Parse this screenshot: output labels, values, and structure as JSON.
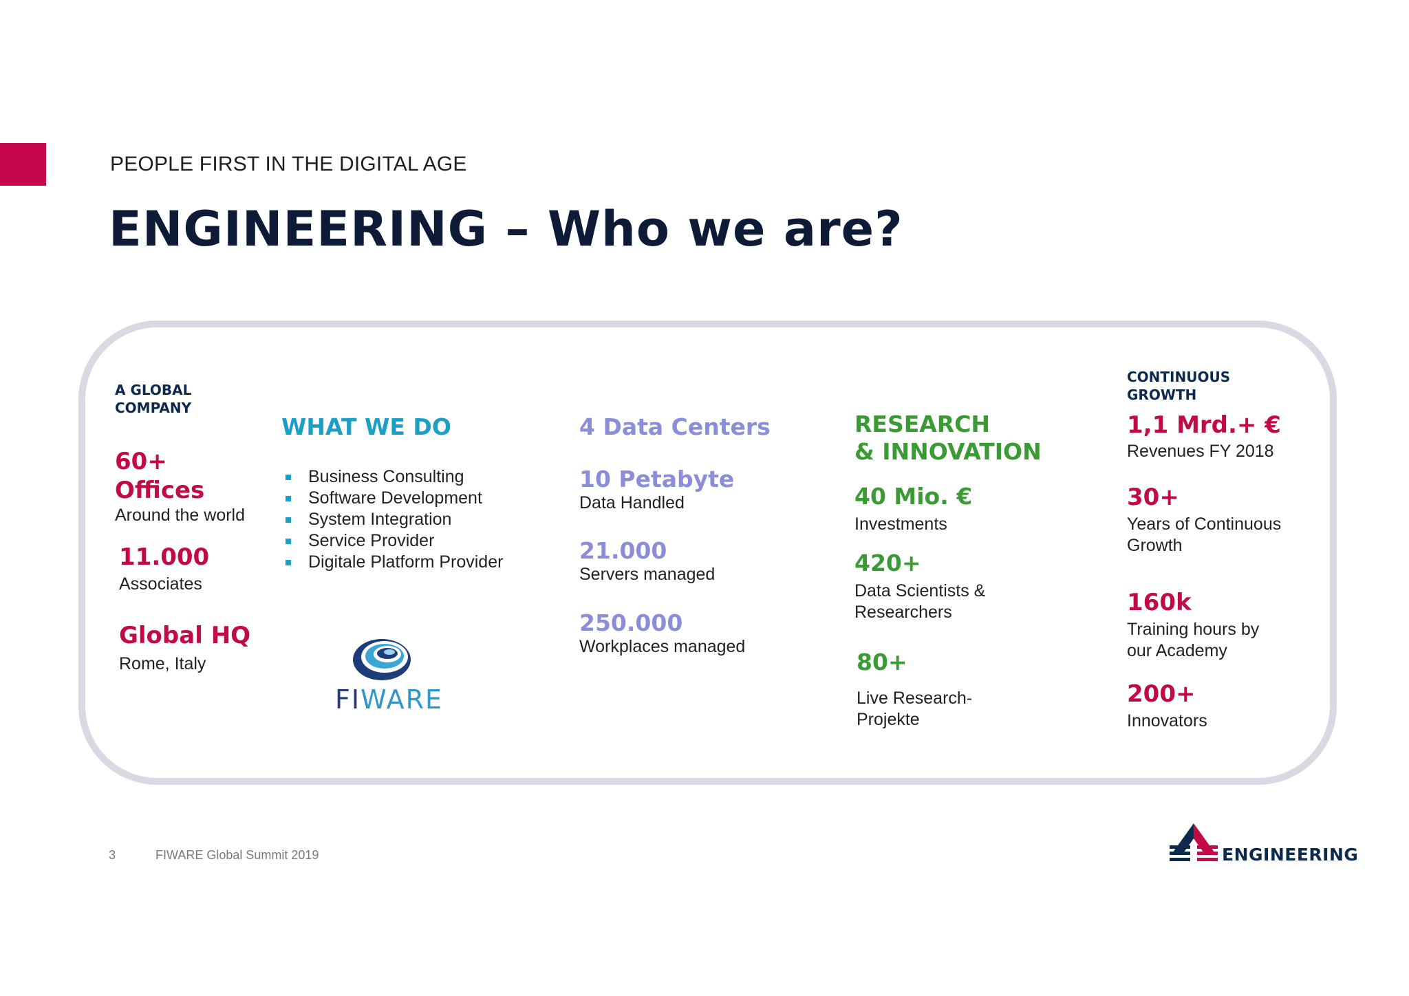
{
  "header": {
    "subtitle": "PEOPLE FIRST IN THE DIGITAL AGE",
    "title": "ENGINEERING – Who we are?"
  },
  "global_company": {
    "heading_line1": "A GLOBAL",
    "heading_line2": "COMPANY",
    "offices_num": "60+",
    "offices_word": "Offices",
    "offices_desc": "Around the world",
    "associates_num": "11.000",
    "associates_desc": "Associates",
    "hq_title": "Global HQ",
    "hq_desc": "Rome, Italy"
  },
  "what_we_do": {
    "heading": "WHAT WE DO",
    "items": [
      "Business Consulting",
      "Software Development",
      "System Integration",
      "Service Provider",
      "Digitale Platform Provider"
    ],
    "logo_text_fi": "FI",
    "logo_text_ware": "WARE"
  },
  "data_centers": {
    "heading": "4 Data Centers",
    "petabyte_num": "10 Petabyte",
    "petabyte_desc": "Data Handled",
    "servers_num": "21.000",
    "servers_desc": "Servers managed",
    "workplaces_num": "250.000",
    "workplaces_desc": "Workplaces managed"
  },
  "research": {
    "heading_line1": "RESEARCH",
    "heading_line2": "& INNOVATION",
    "investments_num": "40 Mio. €",
    "investments_desc": "Investments",
    "scientists_num": "420+",
    "scientists_desc_line1": "Data Scientists &",
    "scientists_desc_line2": "Researchers",
    "projects_num": "80+",
    "projects_desc_line1": "Live Research-",
    "projects_desc_line2": "Projekte"
  },
  "growth": {
    "heading_line1": "CONTINUOUS",
    "heading_line2": "GROWTH",
    "revenue_num": "1,1 Mrd.+ €",
    "revenue_desc": "Revenues FY 2018",
    "years_num": "30+",
    "years_desc_line1": "Years of Continuous",
    "years_desc_line2": "Growth",
    "training_num": "160k",
    "training_desc_line1": "Training hours by",
    "training_desc_line2": "our Academy",
    "innovators_num": "200+",
    "innovators_desc": "Innovators"
  },
  "footer": {
    "page_number": "3",
    "event": "FIWARE Global Summit 2019",
    "brand": "ENGINEERING"
  },
  "colors": {
    "accent_red": "#c20b46",
    "navy": "#0d2a4d",
    "blue": "#1b9fc7",
    "lavender": "#8a8ed8",
    "green": "#3a9b35"
  }
}
